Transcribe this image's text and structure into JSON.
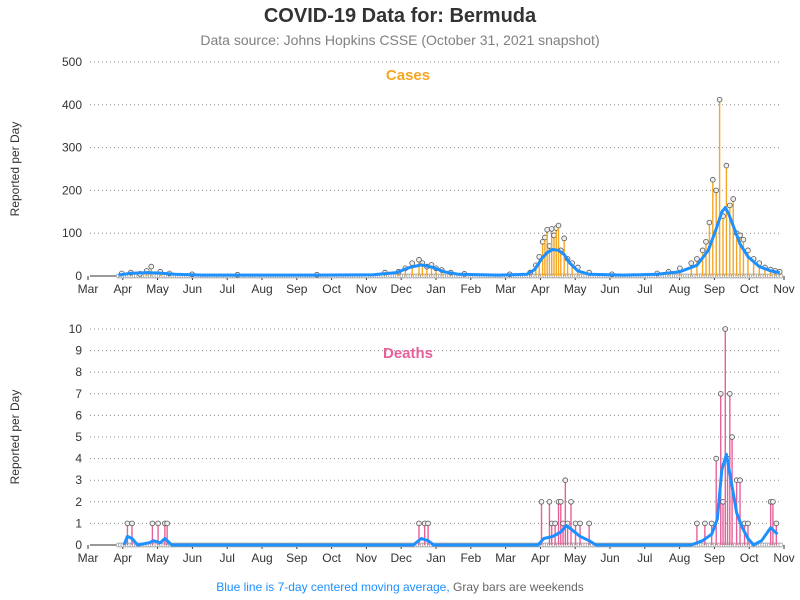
{
  "title": "COVID-19 Data for: Bermuda",
  "subtitle": "Data source: Johns Hopkins CSSE (October 31, 2021 snapshot)",
  "footnote": {
    "blue_text": "Blue line is 7-day centered moving average,",
    "gray_text": "Gray bars are weekends"
  },
  "colors": {
    "cases": "#f5a623",
    "deaths": "#e8609a",
    "moving_average": "#1e90ff",
    "weekend": "#808080",
    "axis_text": "#333333"
  },
  "chart_data": [
    {
      "type": "bar",
      "title": "Cases",
      "ylabel": "Reported per Day",
      "xlabel": "",
      "x_ticks": [
        "Mar",
        "Apr",
        "May",
        "Jun",
        "Jul",
        "Aug",
        "Sep",
        "Oct",
        "Nov",
        "Dec",
        "Jan",
        "Feb",
        "Mar",
        "Apr",
        "May",
        "Jun",
        "Jul",
        "Aug",
        "Sep",
        "Oct",
        "Nov"
      ],
      "y_ticks": [
        "0",
        "100",
        "200",
        "300",
        "400",
        "500"
      ],
      "ylim": [
        0,
        500
      ],
      "xlim_days": [
        0,
        610
      ],
      "grid": true,
      "series": [
        {
          "name": "Cases",
          "markers": "circle",
          "values": [
            {
              "day": 28,
              "value": 6
            },
            {
              "day": 36,
              "value": 8
            },
            {
              "day": 44,
              "value": 5
            },
            {
              "day": 50,
              "value": 12
            },
            {
              "day": 54,
              "value": 22
            },
            {
              "day": 62,
              "value": 10
            },
            {
              "day": 70,
              "value": 6
            },
            {
              "day": 90,
              "value": 4
            },
            {
              "day": 130,
              "value": 3
            },
            {
              "day": 200,
              "value": 3
            },
            {
              "day": 260,
              "value": 8
            },
            {
              "day": 272,
              "value": 10
            },
            {
              "day": 278,
              "value": 18
            },
            {
              "day": 284,
              "value": 30
            },
            {
              "day": 290,
              "value": 38
            },
            {
              "day": 293,
              "value": 30
            },
            {
              "day": 297,
              "value": 22
            },
            {
              "day": 301,
              "value": 26
            },
            {
              "day": 305,
              "value": 18
            },
            {
              "day": 310,
              "value": 14
            },
            {
              "day": 318,
              "value": 8
            },
            {
              "day": 330,
              "value": 5
            },
            {
              "day": 370,
              "value": 4
            },
            {
              "day": 388,
              "value": 8
            },
            {
              "day": 393,
              "value": 25
            },
            {
              "day": 396,
              "value": 45
            },
            {
              "day": 399,
              "value": 80
            },
            {
              "day": 401,
              "value": 90
            },
            {
              "day": 403,
              "value": 108
            },
            {
              "day": 405,
              "value": 70
            },
            {
              "day": 407,
              "value": 110
            },
            {
              "day": 409,
              "value": 95
            },
            {
              "day": 411,
              "value": 112
            },
            {
              "day": 413,
              "value": 118
            },
            {
              "day": 415,
              "value": 60
            },
            {
              "day": 418,
              "value": 88
            },
            {
              "day": 421,
              "value": 40
            },
            {
              "day": 425,
              "value": 30
            },
            {
              "day": 430,
              "value": 20
            },
            {
              "day": 440,
              "value": 8
            },
            {
              "day": 460,
              "value": 4
            },
            {
              "day": 500,
              "value": 6
            },
            {
              "day": 510,
              "value": 10
            },
            {
              "day": 520,
              "value": 18
            },
            {
              "day": 530,
              "value": 30
            },
            {
              "day": 535,
              "value": 40
            },
            {
              "day": 540,
              "value": 60
            },
            {
              "day": 543,
              "value": 80
            },
            {
              "day": 546,
              "value": 125
            },
            {
              "day": 549,
              "value": 225
            },
            {
              "day": 552,
              "value": 200
            },
            {
              "day": 555,
              "value": 412
            },
            {
              "day": 558,
              "value": 140
            },
            {
              "day": 561,
              "value": 258
            },
            {
              "day": 564,
              "value": 165
            },
            {
              "day": 567,
              "value": 180
            },
            {
              "day": 570,
              "value": 100
            },
            {
              "day": 573,
              "value": 95
            },
            {
              "day": 576,
              "value": 85
            },
            {
              "day": 580,
              "value": 60
            },
            {
              "day": 585,
              "value": 40
            },
            {
              "day": 590,
              "value": 30
            },
            {
              "day": 595,
              "value": 20
            },
            {
              "day": 600,
              "value": 15
            },
            {
              "day": 604,
              "value": 12
            },
            {
              "day": 608,
              "value": 10
            }
          ]
        },
        {
          "name": "7-day centered moving average",
          "values": [
            {
              "day": 25,
              "value": 2
            },
            {
              "day": 35,
              "value": 6
            },
            {
              "day": 50,
              "value": 8
            },
            {
              "day": 60,
              "value": 7
            },
            {
              "day": 75,
              "value": 4
            },
            {
              "day": 100,
              "value": 2
            },
            {
              "day": 200,
              "value": 2
            },
            {
              "day": 250,
              "value": 3
            },
            {
              "day": 270,
              "value": 8
            },
            {
              "day": 282,
              "value": 20
            },
            {
              "day": 292,
              "value": 26
            },
            {
              "day": 302,
              "value": 20
            },
            {
              "day": 312,
              "value": 10
            },
            {
              "day": 325,
              "value": 4
            },
            {
              "day": 360,
              "value": 2
            },
            {
              "day": 385,
              "value": 4
            },
            {
              "day": 392,
              "value": 15
            },
            {
              "day": 398,
              "value": 40
            },
            {
              "day": 403,
              "value": 55
            },
            {
              "day": 408,
              "value": 62
            },
            {
              "day": 413,
              "value": 60
            },
            {
              "day": 418,
              "value": 50
            },
            {
              "day": 423,
              "value": 30
            },
            {
              "day": 430,
              "value": 12
            },
            {
              "day": 440,
              "value": 4
            },
            {
              "day": 470,
              "value": 2
            },
            {
              "day": 500,
              "value": 4
            },
            {
              "day": 520,
              "value": 10
            },
            {
              "day": 535,
              "value": 25
            },
            {
              "day": 545,
              "value": 60
            },
            {
              "day": 552,
              "value": 110
            },
            {
              "day": 557,
              "value": 150
            },
            {
              "day": 560,
              "value": 160
            },
            {
              "day": 563,
              "value": 145
            },
            {
              "day": 568,
              "value": 110
            },
            {
              "day": 573,
              "value": 75
            },
            {
              "day": 580,
              "value": 45
            },
            {
              "day": 590,
              "value": 22
            },
            {
              "day": 600,
              "value": 12
            },
            {
              "day": 608,
              "value": 8
            }
          ]
        }
      ]
    },
    {
      "type": "bar",
      "title": "Deaths",
      "ylabel": "Reported per Day",
      "xlabel": "",
      "x_ticks": [
        "Mar",
        "Apr",
        "May",
        "Jun",
        "Jul",
        "Aug",
        "Sep",
        "Oct",
        "Nov",
        "Dec",
        "Jan",
        "Feb",
        "Mar",
        "Apr",
        "May",
        "Jun",
        "Jul",
        "Aug",
        "Sep",
        "Oct",
        "Nov"
      ],
      "y_ticks": [
        "0",
        "1",
        "2",
        "3",
        "4",
        "5",
        "6",
        "7",
        "8",
        "9",
        "10"
      ],
      "ylim": [
        0,
        10
      ],
      "xlim_days": [
        0,
        610
      ],
      "grid": true,
      "series": [
        {
          "name": "Deaths",
          "markers": "circle",
          "values": [
            {
              "day": 33,
              "value": 1
            },
            {
              "day": 37,
              "value": 1
            },
            {
              "day": 55,
              "value": 1
            },
            {
              "day": 60,
              "value": 1
            },
            {
              "day": 66,
              "value": 1
            },
            {
              "day": 68,
              "value": 1
            },
            {
              "day": 290,
              "value": 1
            },
            {
              "day": 295,
              "value": 1
            },
            {
              "day": 298,
              "value": 1
            },
            {
              "day": 398,
              "value": 2
            },
            {
              "day": 405,
              "value": 2
            },
            {
              "day": 407,
              "value": 1
            },
            {
              "day": 410,
              "value": 1
            },
            {
              "day": 413,
              "value": 2
            },
            {
              "day": 415,
              "value": 2
            },
            {
              "day": 417,
              "value": 1
            },
            {
              "day": 419,
              "value": 3
            },
            {
              "day": 421,
              "value": 1
            },
            {
              "day": 424,
              "value": 2
            },
            {
              "day": 428,
              "value": 1
            },
            {
              "day": 432,
              "value": 1
            },
            {
              "day": 440,
              "value": 1
            },
            {
              "day": 535,
              "value": 1
            },
            {
              "day": 542,
              "value": 1
            },
            {
              "day": 548,
              "value": 1
            },
            {
              "day": 552,
              "value": 4
            },
            {
              "day": 556,
              "value": 7
            },
            {
              "day": 558,
              "value": 2
            },
            {
              "day": 560,
              "value": 10
            },
            {
              "day": 562,
              "value": 4
            },
            {
              "day": 564,
              "value": 7
            },
            {
              "day": 566,
              "value": 5
            },
            {
              "day": 570,
              "value": 3
            },
            {
              "day": 573,
              "value": 3
            },
            {
              "day": 577,
              "value": 1
            },
            {
              "day": 580,
              "value": 1
            },
            {
              "day": 600,
              "value": 2
            },
            {
              "day": 602,
              "value": 2
            },
            {
              "day": 605,
              "value": 1
            }
          ]
        },
        {
          "name": "7-day centered moving average",
          "values": [
            {
              "day": 30,
              "value": 0
            },
            {
              "day": 33,
              "value": 0.4
            },
            {
              "day": 37,
              "value": 0.3
            },
            {
              "day": 42,
              "value": 0
            },
            {
              "day": 52,
              "value": 0.1
            },
            {
              "day": 56,
              "value": 0.2
            },
            {
              "day": 62,
              "value": 0.1
            },
            {
              "day": 66,
              "value": 0.3
            },
            {
              "day": 72,
              "value": 0
            },
            {
              "day": 285,
              "value": 0
            },
            {
              "day": 292,
              "value": 0.3
            },
            {
              "day": 298,
              "value": 0.2
            },
            {
              "day": 303,
              "value": 0
            },
            {
              "day": 395,
              "value": 0
            },
            {
              "day": 400,
              "value": 0.3
            },
            {
              "day": 408,
              "value": 0.4
            },
            {
              "day": 415,
              "value": 0.6
            },
            {
              "day": 420,
              "value": 0.9
            },
            {
              "day": 425,
              "value": 0.7
            },
            {
              "day": 432,
              "value": 0.4
            },
            {
              "day": 440,
              "value": 0.2
            },
            {
              "day": 446,
              "value": 0
            },
            {
              "day": 530,
              "value": 0
            },
            {
              "day": 540,
              "value": 0.2
            },
            {
              "day": 548,
              "value": 0.5
            },
            {
              "day": 553,
              "value": 1.2
            },
            {
              "day": 557,
              "value": 3.5
            },
            {
              "day": 561,
              "value": 4.2
            },
            {
              "day": 565,
              "value": 3
            },
            {
              "day": 570,
              "value": 1.5
            },
            {
              "day": 575,
              "value": 0.8
            },
            {
              "day": 580,
              "value": 0.3
            },
            {
              "day": 585,
              "value": 0
            },
            {
              "day": 592,
              "value": 0.2
            },
            {
              "day": 600,
              "value": 0.8
            },
            {
              "day": 606,
              "value": 0.5
            }
          ]
        }
      ]
    }
  ]
}
